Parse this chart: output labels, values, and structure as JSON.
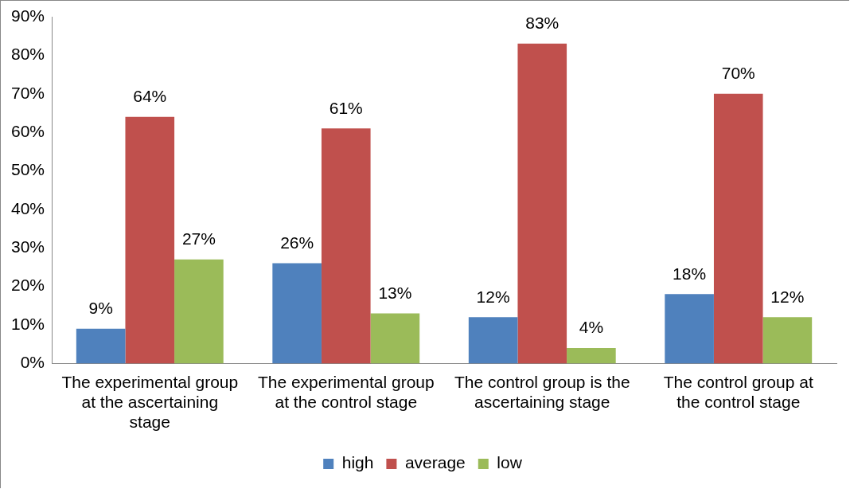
{
  "chart_data": {
    "type": "bar",
    "categories": [
      "The experimental group at the ascertaining stage",
      "The experimental group at the control stage",
      "The control group is the ascertaining stage",
      "The control group at the control stage"
    ],
    "series": [
      {
        "name": "high",
        "color": "#4f81bd",
        "values": [
          9,
          26,
          12,
          18
        ],
        "value_labels": [
          "9%",
          "26%",
          "12%",
          "18%"
        ]
      },
      {
        "name": "average",
        "color": "#c0504d",
        "values": [
          64,
          61,
          83,
          70
        ],
        "value_labels": [
          "64%",
          "61%",
          "83%",
          "70%"
        ]
      },
      {
        "name": "low",
        "color": "#9bbb59",
        "values": [
          27,
          13,
          4,
          12
        ],
        "value_labels": [
          "27%",
          "13%",
          "4%",
          "12%"
        ]
      }
    ],
    "ylim": [
      0,
      90
    ],
    "yticks": [
      {
        "value": 0,
        "label": "0%"
      },
      {
        "value": 10,
        "label": "10%"
      },
      {
        "value": 20,
        "label": "20%"
      },
      {
        "value": 30,
        "label": "30%"
      },
      {
        "value": 40,
        "label": "40%"
      },
      {
        "value": 50,
        "label": "50%"
      },
      {
        "value": 60,
        "label": "60%"
      },
      {
        "value": 70,
        "label": "70%"
      },
      {
        "value": 80,
        "label": "80%"
      },
      {
        "value": 90,
        "label": "90%"
      }
    ],
    "grid": false,
    "legend": "bottom"
  }
}
